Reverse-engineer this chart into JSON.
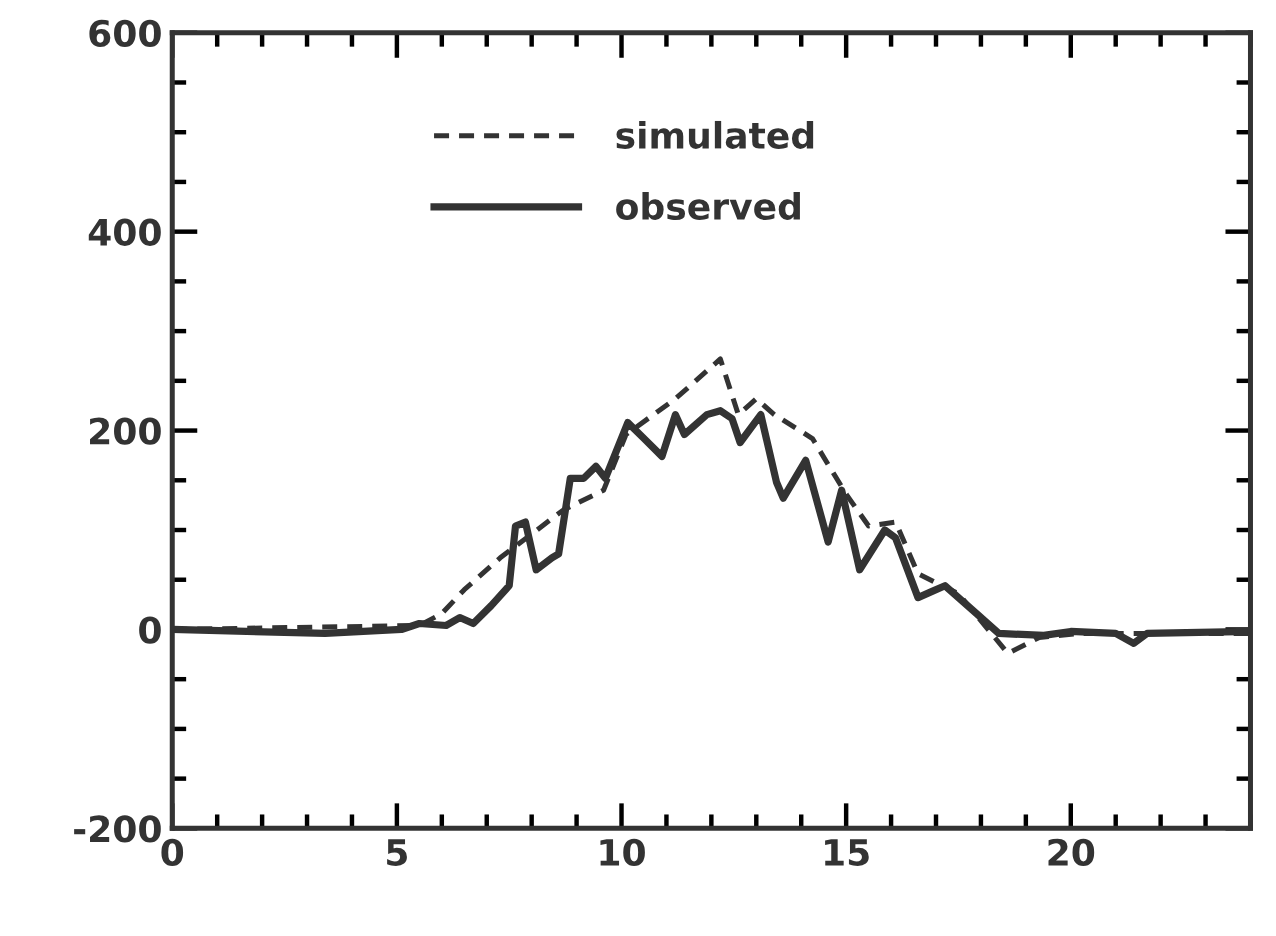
{
  "chart_data": {
    "type": "line",
    "xlim": [
      0,
      24
    ],
    "ylim": [
      -200,
      600
    ],
    "xticks": [
      0,
      {
        "value": 1,
        "label": null
      },
      {
        "value": 2,
        "label": null
      },
      {
        "value": 3,
        "label": null
      },
      {
        "value": 4,
        "label": null
      },
      5,
      {
        "value": 6,
        "label": null
      },
      {
        "value": 7,
        "label": null
      },
      {
        "value": 8,
        "label": null
      },
      {
        "value": 9,
        "label": null
      },
      10,
      {
        "value": 11,
        "label": null
      },
      {
        "value": 12,
        "label": null
      },
      {
        "value": 13,
        "label": null
      },
      {
        "value": 14,
        "label": null
      },
      15,
      {
        "value": 16,
        "label": null
      },
      {
        "value": 17,
        "label": null
      },
      {
        "value": 18,
        "label": null
      },
      {
        "value": 19,
        "label": null
      },
      20,
      {
        "value": 21,
        "label": null
      },
      {
        "value": 22,
        "label": null
      },
      {
        "value": 23,
        "label": null
      },
      {
        "value": 24,
        "label": null
      }
    ],
    "yticks": [
      -200,
      {
        "value": -150,
        "label": null
      },
      {
        "value": -100,
        "label": null
      },
      {
        "value": -50,
        "label": null
      },
      0,
      {
        "value": 50,
        "label": null
      },
      {
        "value": 100,
        "label": null
      },
      {
        "value": 150,
        "label": null
      },
      200,
      {
        "value": 250,
        "label": null
      },
      {
        "value": 300,
        "label": null
      },
      {
        "value": 350,
        "label": null
      },
      400,
      {
        "value": 450,
        "label": null
      },
      {
        "value": 500,
        "label": null
      },
      {
        "value": 550,
        "label": null
      },
      600
    ],
    "legend": "top",
    "grid": false,
    "marker": "none",
    "series": [
      {
        "name": "simulated",
        "color": "#333333",
        "line_style": "dashed",
        "x": [
          0,
          5.5,
          6,
          6.5,
          7.3,
          8,
          8.7,
          9.6,
          10.1,
          11.2,
          12.2,
          12.6,
          13,
          13.4,
          14.25,
          15,
          15.5,
          16.1,
          16.6,
          17.5,
          18.6,
          19.3,
          20.2,
          24
        ],
        "values": [
          0,
          4,
          16,
          40,
          72,
          96,
          120,
          140,
          196,
          232,
          272,
          216,
          232,
          216,
          192,
          136,
          104,
          108,
          56,
          36,
          -24,
          -8,
          -4,
          -4
        ]
      },
      {
        "name": "observed",
        "color": "#333333",
        "line_style": "solid",
        "x": [
          0,
          3.4,
          5.1,
          5.5,
          6.1,
          6.4,
          6.7,
          7.1,
          7.5,
          7.64,
          7.86,
          8.1,
          8.45,
          8.6,
          8.86,
          9.16,
          9.43,
          9.64,
          10.14,
          10.5,
          10.9,
          11.2,
          11.4,
          11.9,
          12.2,
          12.46,
          12.64,
          13.1,
          13.45,
          13.6,
          14.1,
          14.6,
          14.9,
          15.3,
          15.86,
          16.1,
          16.6,
          16.9,
          17.2,
          17.9,
          18.4,
          19.4,
          20,
          21,
          21.4,
          21.7,
          24
        ],
        "values": [
          0,
          -4,
          0,
          6,
          4,
          12,
          6,
          24,
          44,
          104,
          108,
          60,
          72,
          76,
          152,
          152,
          164,
          152,
          208,
          192,
          174,
          216,
          196,
          216,
          220,
          212,
          188,
          216,
          148,
          132,
          170,
          88,
          140,
          60,
          100,
          92,
          32,
          38,
          44,
          16,
          -4,
          -6,
          -2,
          -4,
          -14,
          -4,
          -2
        ]
      }
    ]
  }
}
